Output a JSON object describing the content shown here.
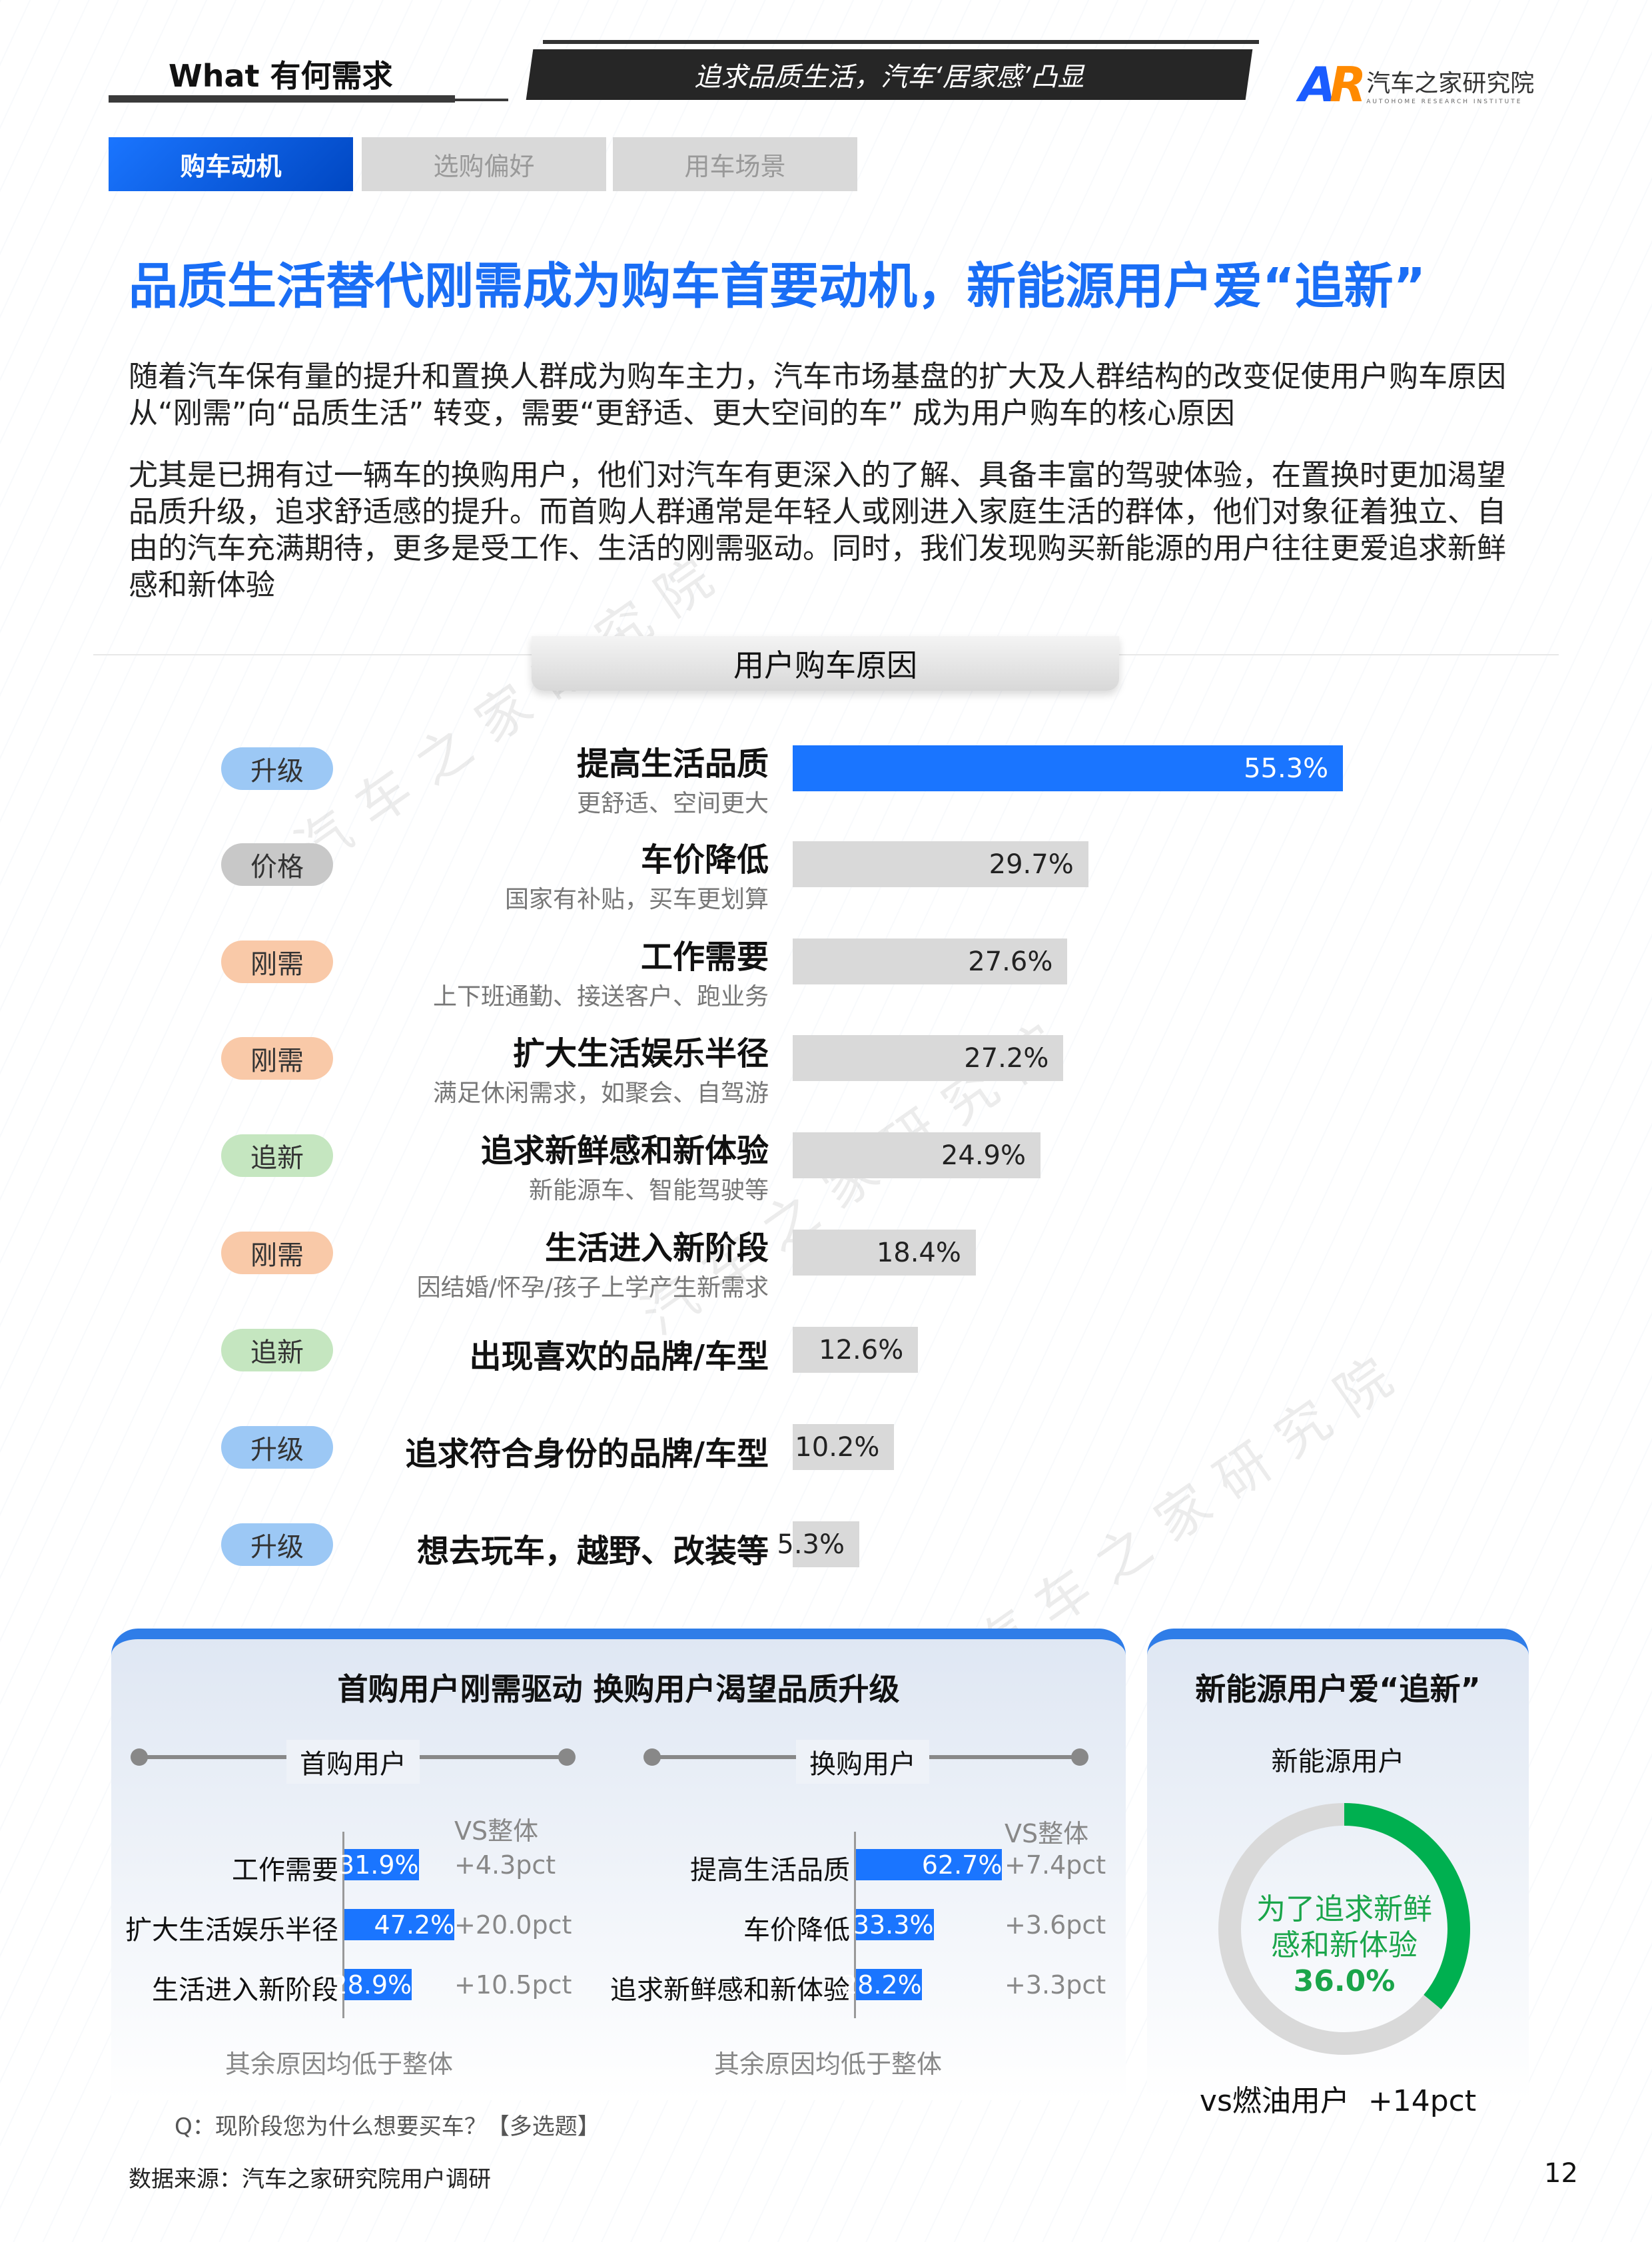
{
  "header": {
    "section": "What 有何需求",
    "banner": "追求品质生活，汽车‘居家感’凸显",
    "logo": {
      "mark": "AR",
      "name": "汽车之家研究院",
      "sub": "AUTOHOME RESEARCH INSTITUTE"
    }
  },
  "tabs": [
    {
      "label": "购车动机",
      "active": true
    },
    {
      "label": "选购偏好",
      "active": false
    },
    {
      "label": "用车场景",
      "active": false
    }
  ],
  "title": "品质生活替代刚需成为购车首要动机，新能源用户爱“追新”",
  "paragraphs": [
    "随着汽车保有量的提升和置换人群成为购车主力，汽车市场基盘的扩大及人群结构的改变促使用户购车原因从“刚需”向“品质生活” 转变，需要“更舒适、更大空间的车” 成为用户购车的核心原因",
    "尤其是已拥有过一辆车的换购用户，他们对汽车有更深入的了解、具备丰富的驾驶体验，在置换时更加渴望品质升级，追求舒适感的提升。而首购人群通常是年轻人或刚进入家庭生活的群体，他们对象征着独立、自由的汽车充满期待，更多是受工作、生活的刚需驱动。同时，我们发现购买新能源的用户往往更爱追求新鲜感和新体验"
  ],
  "watermark": "汽车之家研究院",
  "chart_data": [
    {
      "type": "bar",
      "orientation": "horizontal",
      "title": "用户购车原因",
      "categories": [
        "提高生活品质",
        "车价降低",
        "工作需要",
        "扩大生活娱乐半径",
        "追求新鲜感和新体验",
        "生活进入新阶段",
        "出现喜欢的品牌/车型",
        "追求符合身份的品牌/车型",
        "想去玩车，越野、改装等"
      ],
      "subtitles": [
        "更舒适、空间更大",
        "国家有补贴，买车更划算",
        "上下班通勤、接送客户、跑业务",
        "满足休闲需求，如聚会、自驾游",
        "新能源车、智能驾驶等",
        "因结婚/怀孕/孩子上学产生新需求",
        "",
        "",
        ""
      ],
      "tags": [
        "升级",
        "价格",
        "刚需",
        "刚需",
        "追新",
        "刚需",
        "追新",
        "升级",
        "升级"
      ],
      "values": [
        55.3,
        29.7,
        27.6,
        27.2,
        24.9,
        18.4,
        12.6,
        10.2,
        5.3
      ],
      "labels": [
        "55.3%",
        "29.7%",
        "27.6%",
        "27.2%",
        "24.9%",
        "18.4%",
        "12.6%",
        "10.2%",
        "5.3%"
      ],
      "highlight_color": "#1a75ff",
      "bar_color": "#d9d9d9",
      "tag_colors": {
        "升级": "#9cc8f5",
        "价格": "#c8c8c8",
        "刚需": "#f9c9a8",
        "追新": "#c5e6c0"
      }
    },
    {
      "type": "bar",
      "orientation": "horizontal",
      "title": "首购用户",
      "vs_label": "VS整体",
      "categories": [
        "工作需要",
        "扩大生活娱乐半径",
        "生活进入新阶段"
      ],
      "values": [
        31.9,
        47.2,
        28.9
      ],
      "labels": [
        "31.9%",
        "47.2%",
        "28.9%"
      ],
      "vs": [
        "+4.3pct",
        "+20.0pct",
        "+10.5pct"
      ],
      "note": "其余原因均低于整体"
    },
    {
      "type": "bar",
      "orientation": "horizontal",
      "title": "换购用户",
      "vs_label": "VS整体",
      "categories": [
        "提高生活品质",
        "车价降低",
        "追求新鲜感和新体验"
      ],
      "values": [
        62.7,
        33.3,
        28.2
      ],
      "labels": [
        "62.7%",
        "33.3%",
        "28.2%"
      ],
      "vs": [
        "+7.4pct",
        "+3.6pct",
        "+3.3pct"
      ],
      "note": "其余原因均低于整体"
    },
    {
      "type": "pie",
      "style": "donut",
      "title": "新能源用户",
      "value": 36.0,
      "label_lines": [
        "为了追求新鲜",
        "感和新体验"
      ],
      "value_label": "36.0%",
      "color": "#00b050",
      "rest_color": "#d9d9d9",
      "footer": "vs燃油用户  +14pct"
    }
  ],
  "panels": {
    "left_title": "首购用户刚需驱动 换购用户渴望品质升级",
    "right_title": "新能源用户爱“追新”"
  },
  "footer": {
    "question": "Q：现阶段您为什么想要买车？【多选题】",
    "source": "数据来源：汽车之家研究院用户调研",
    "page": "12"
  }
}
